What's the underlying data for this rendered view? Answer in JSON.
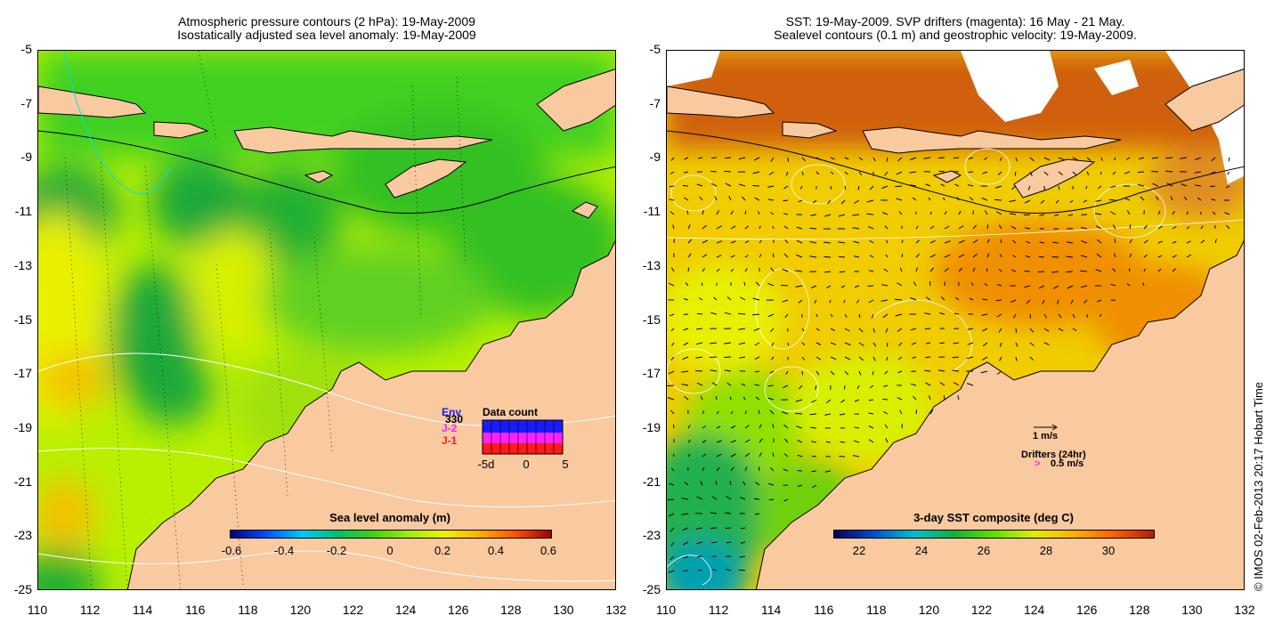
{
  "left_panel": {
    "title_line1": "Atmospheric pressure contours (2 hPa): 19-May-2009",
    "title_line2": "Isostatically adjusted sea level anomaly: 19-May-2009",
    "colorbar_title": "Sea level anomaly (m)",
    "colorbar_ticks": [
      "-0.6",
      "-0.4",
      "-0.2",
      "0",
      "0.2",
      "0.4",
      "0.6"
    ],
    "inset_title": "Data count",
    "inset_series": [
      "Env",
      "J-2",
      "J-1"
    ],
    "inset_value": "330",
    "inset_ticks": [
      "-5d",
      "0",
      "5"
    ],
    "series_colors": {
      "Env": "#1a1aff",
      "J-2": "#ff22ff",
      "J-1": "#ff1a1a"
    }
  },
  "right_panel": {
    "title_line1": "SST: 19-May-2009. SVP drifters (magenta): 16 May - 21 May.",
    "title_line2": "Sealevel contours (0.1 m) and geostrophic velocity: 19-May-2009.",
    "colorbar_title": "3-day SST composite (deg C)",
    "colorbar_ticks": [
      "22",
      "24",
      "26",
      "28",
      "30"
    ],
    "velocity_legend": "1 m/s",
    "drifters_legend": "Drifters (24hr)",
    "drifters_speed": "0.5 m/s",
    "drifter_symbol": ">"
  },
  "axes": {
    "y_ticks": [
      "-5",
      "-7",
      "-9",
      "-11",
      "-13",
      "-15",
      "-17",
      "-19",
      "-21",
      "-23",
      "-25"
    ],
    "x_ticks": [
      "110",
      "112",
      "114",
      "116",
      "118",
      "120",
      "122",
      "124",
      "126",
      "128",
      "130",
      "132"
    ],
    "lon_range": [
      110,
      132
    ],
    "lat_range": [
      -25,
      -5
    ]
  },
  "credit": "© IMOS 02-Feb-2013 20:17 Hobart Time",
  "colors": {
    "land": "#f9c9a0",
    "sla_ramp": [
      "#00007a",
      "#0050ff",
      "#00c8ff",
      "#00c070",
      "#40d010",
      "#a0ec10",
      "#f0f000",
      "#ffb000",
      "#ff5000",
      "#a00000"
    ],
    "sst_ramp": [
      "#00005a",
      "#0050d0",
      "#00c0d0",
      "#10b040",
      "#60e000",
      "#e0f000",
      "#ffb000",
      "#ff6000",
      "#b02000"
    ]
  }
}
